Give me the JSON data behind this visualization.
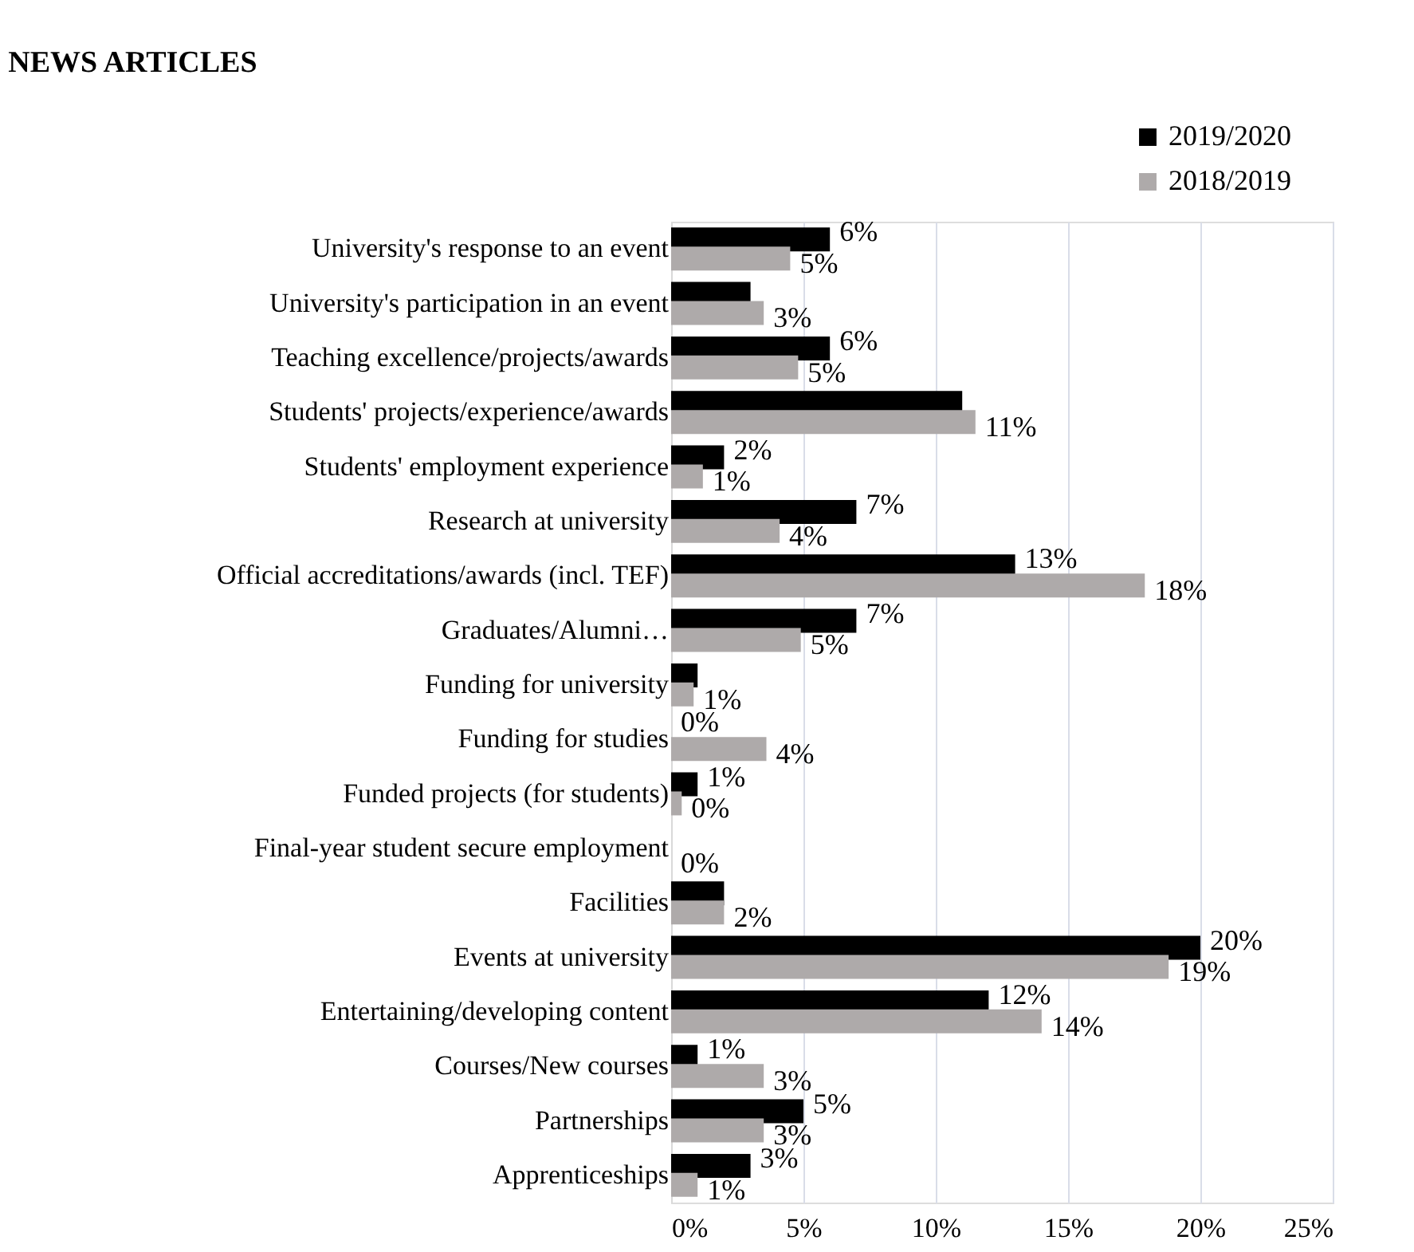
{
  "chart_data": {
    "type": "bar",
    "orientation": "horizontal",
    "title": "NEWS ARTICLES",
    "categories": [
      "University's response to an event",
      "University's participation in an event",
      "Teaching excellence/projects/awards",
      "Students' projects/experience/awards",
      "Students' employment experience",
      "Research at university",
      "Official accreditations/awards (incl. TEF)",
      "Graduates/Alumni…",
      "Funding for university",
      "Funding for studies",
      "Funded projects (for students)",
      "Final-year student secure employment",
      "Facilities",
      "Events at university",
      "Entertaining/developing content",
      "Courses/New courses",
      "Partnerships",
      "Apprenticeships"
    ],
    "series": [
      {
        "name": "2019/2020",
        "color": "#000000",
        "values": [
          6.0,
          3.0,
          6.0,
          11.0,
          2.0,
          7.0,
          13.0,
          7.0,
          1.0,
          0,
          1.0,
          0,
          2.0,
          20.0,
          12.0,
          1.0,
          5.0,
          3.0
        ],
        "value_labels": [
          "6%",
          null,
          "6%",
          null,
          "2%",
          "7%",
          "13%",
          "7%",
          null,
          "0%",
          "1%",
          null,
          null,
          "20%",
          "12%",
          "1%",
          "5%",
          "3%"
        ]
      },
      {
        "name": "2018/2019",
        "color": "#aeaaaa",
        "values": [
          4.5,
          3.5,
          4.8,
          11.5,
          1.2,
          4.1,
          17.9,
          4.9,
          0.85,
          3.6,
          0.4,
          0,
          2.0,
          18.8,
          14.0,
          3.5,
          3.5,
          1.0
        ],
        "value_labels": [
          "5%",
          "3%",
          "5%",
          "11%",
          "1%",
          "4%",
          "18%",
          "5%",
          "1%",
          "4%",
          "0%",
          "0%",
          "2%",
          "19%",
          "14%",
          "3%",
          "3%",
          "1%"
        ]
      }
    ],
    "xlim": [
      0,
      25
    ],
    "xticks": [
      {
        "value": 0,
        "label": "0%"
      },
      {
        "value": 5,
        "label": "5%"
      },
      {
        "value": 10,
        "label": "10%"
      },
      {
        "value": 15,
        "label": "15%"
      },
      {
        "value": 20,
        "label": "20%"
      },
      {
        "value": 25,
        "label": "25%"
      }
    ],
    "grid": "x",
    "legend": "top right"
  }
}
